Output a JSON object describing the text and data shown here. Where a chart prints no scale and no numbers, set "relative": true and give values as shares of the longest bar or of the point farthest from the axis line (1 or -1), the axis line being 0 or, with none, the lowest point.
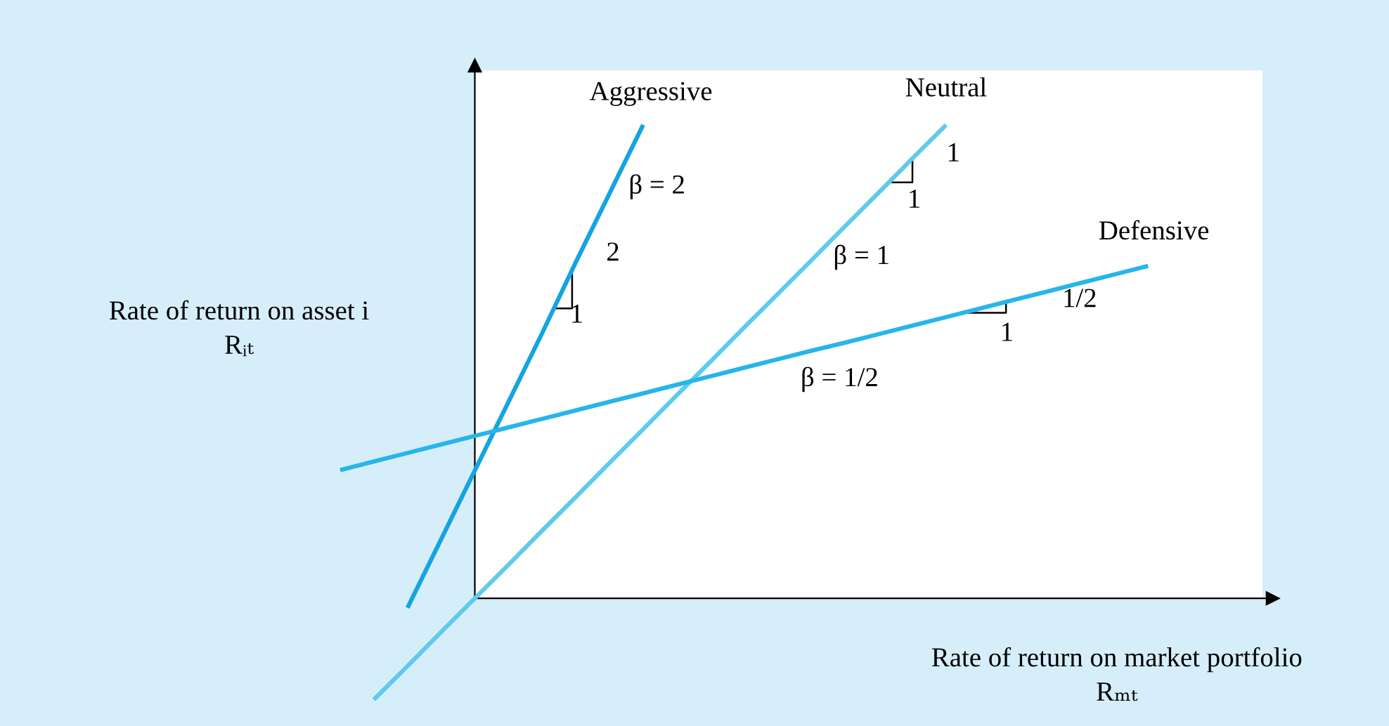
{
  "chart_data": {
    "type": "line",
    "relative": true,
    "xlabel": "Rate of return on market portfolio\nRₘₜ",
    "ylabel": "Rate of return on asset i\nRᵢₜ",
    "categories": [
      null,
      null,
      null,
      null,
      null,
      null,
      null,
      null,
      null,
      null,
      null,
      null,
      null,
      null,
      null,
      null,
      null,
      null,
      null,
      null,
      null,
      null,
      null,
      null,
      null
    ],
    "series": [
      {
        "name": "Aggressive",
        "color": "#14a4e2",
        "values": [
          null,
          null,
          -0.02,
          0.125,
          0.27,
          0.415,
          0.56,
          0.71,
          0.855,
          1.0,
          null,
          null,
          null,
          null,
          null,
          null,
          null,
          null,
          null,
          null,
          null,
          null,
          null,
          null,
          null
        ]
      },
      {
        "name": "Neutral",
        "color": "#5ccbf0",
        "values": [
          null,
          -0.214,
          -0.143,
          -0.071,
          0,
          0.071,
          0.143,
          0.214,
          0.286,
          0.357,
          0.429,
          0.5,
          0.572,
          0.643,
          0.714,
          0.786,
          0.857,
          0.929,
          1.0,
          null,
          null,
          null,
          null,
          null,
          null
        ]
      },
      {
        "name": "Defensive",
        "color": "#27b5ea",
        "values": [
          0.271,
          0.289,
          0.307,
          0.325,
          0.343,
          0.361,
          0.379,
          0.397,
          0.415,
          0.433,
          0.451,
          0.469,
          0.487,
          0.505,
          0.523,
          0.54,
          0.558,
          0.576,
          0.594,
          0.612,
          0.63,
          0.648,
          0.666,
          0.684,
          0.702
        ]
      }
    ],
    "annotations": [
      "β = 2",
      "β = 1",
      "β = 1/2",
      "2",
      "1",
      "1",
      "1",
      "1/2",
      "1"
    ],
    "legend": false,
    "marker": "none",
    "line_style": "solid"
  }
}
